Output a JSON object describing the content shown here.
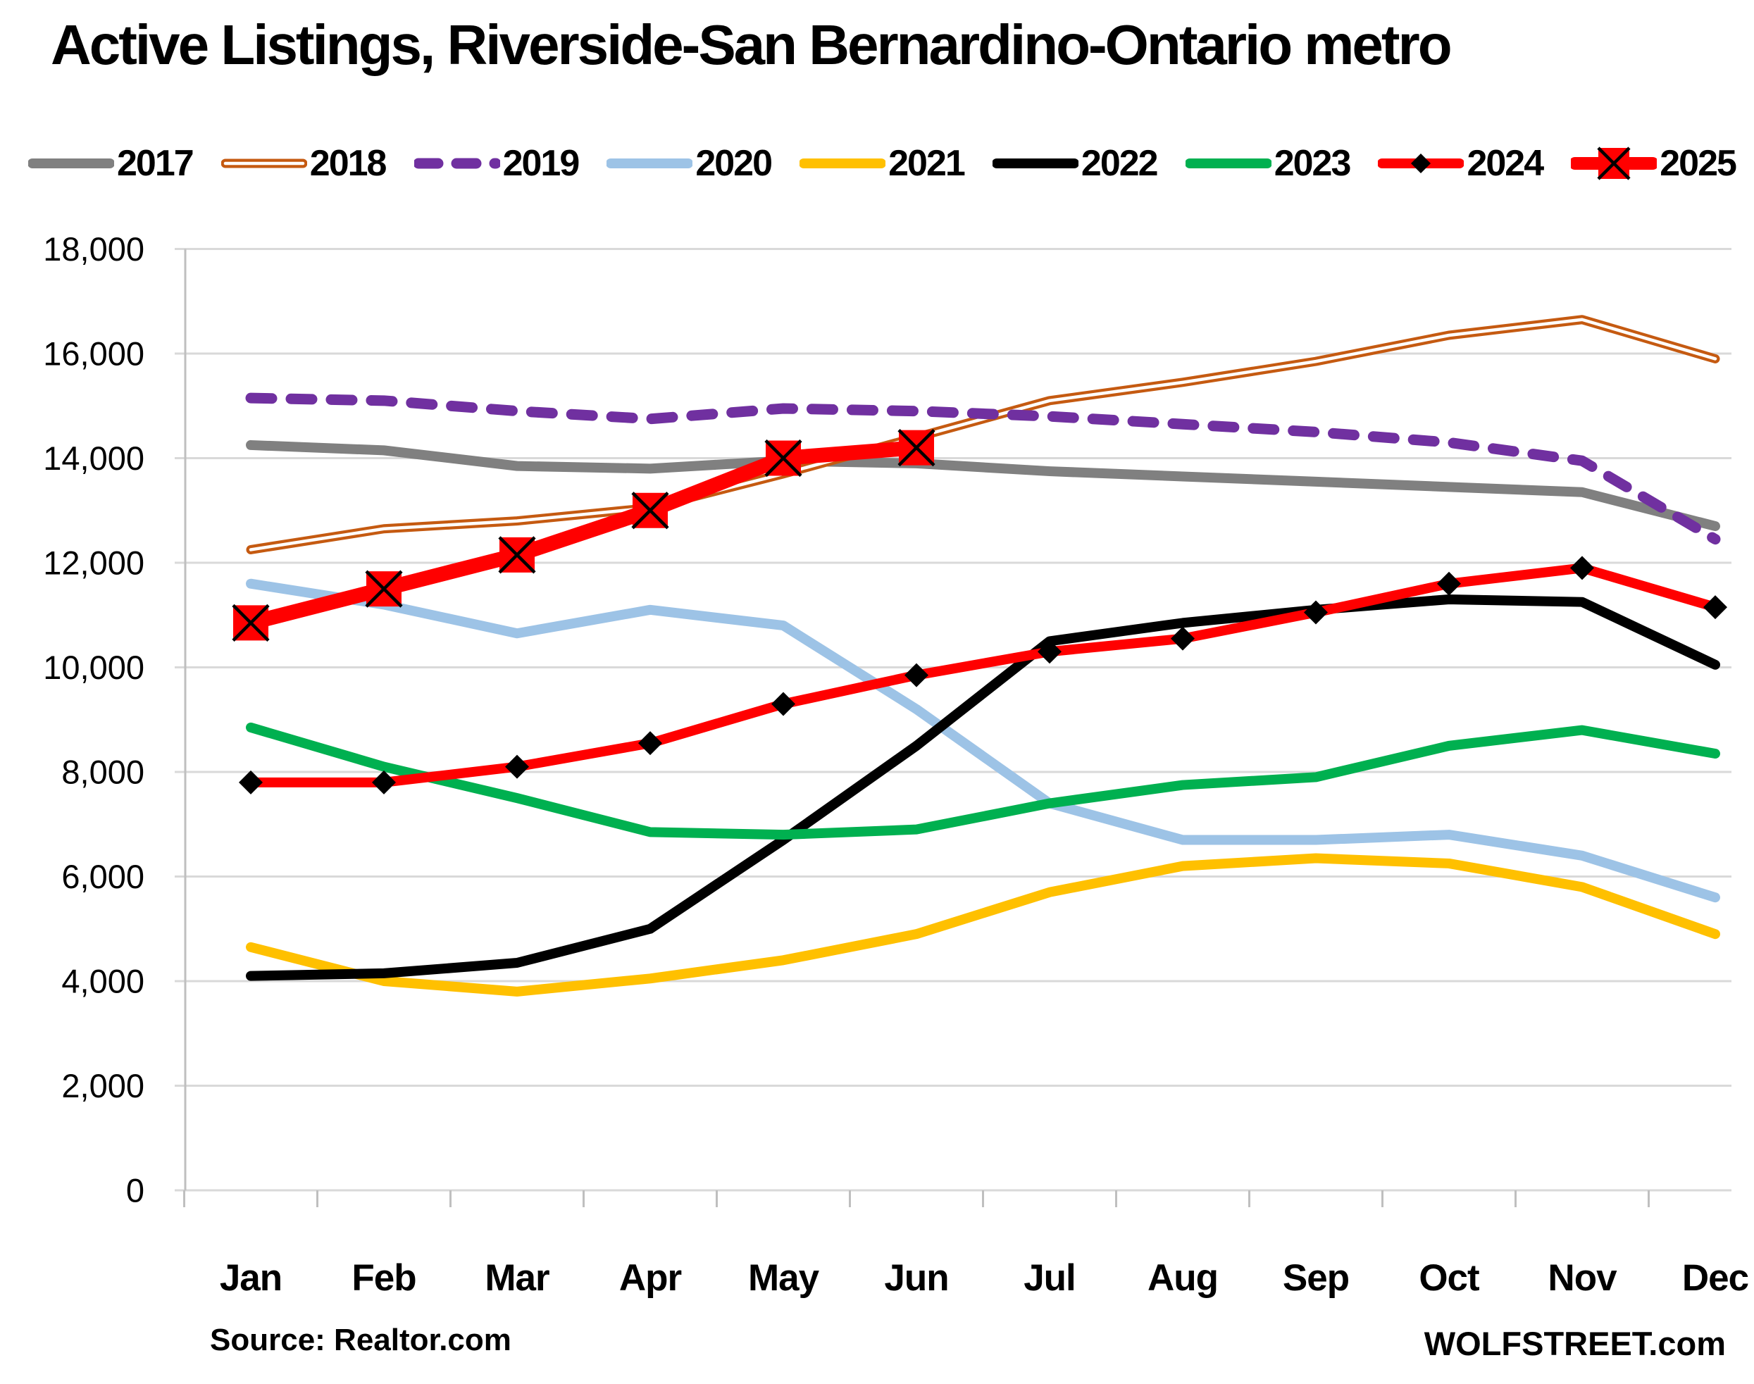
{
  "page": {
    "title": "Active Listings, Riverside-San Bernardino-Ontario metro"
  },
  "footer": {
    "source": "Source: Realtor.com",
    "brand": "WOLFSTREET.com"
  },
  "colors": {
    "background": "#FFFFFF",
    "gridline": "#D9D9D9",
    "axis": "#BFBFBF",
    "text": "#000000"
  },
  "chart_data": {
    "type": "line",
    "title": "Active Listings, Riverside-San Bernardino-Ontario metro",
    "xlabel": "",
    "ylabel": "",
    "ylim": [
      0,
      18000
    ],
    "ytick_step": 2000,
    "yticks": [
      "0",
      "2,000",
      "4,000",
      "6,000",
      "8,000",
      "10,000",
      "12,000",
      "14,000",
      "16,000",
      "18,000"
    ],
    "grid": "horizontal",
    "legend_position": "top",
    "categories": [
      "Jan",
      "Feb",
      "Mar",
      "Apr",
      "May",
      "Jun",
      "Jul",
      "Aug",
      "Sep",
      "Oct",
      "Nov",
      "Dec"
    ],
    "series": [
      {
        "name": "2017",
        "color": "#808080",
        "line_style": "solid",
        "line_width": 14,
        "marker": "none",
        "values": [
          14250,
          14150,
          13850,
          13800,
          13950,
          13900,
          13750,
          13650,
          13550,
          13450,
          13350,
          12700
        ]
      },
      {
        "name": "2018",
        "color": "#C55A11",
        "line_style": "double",
        "line_width": 13,
        "marker": "none",
        "values": [
          12250,
          12650,
          12800,
          13050,
          13700,
          14400,
          15100,
          15450,
          15850,
          16350,
          16650,
          15900
        ]
      },
      {
        "name": "2019",
        "color": "#7030A0",
        "line_style": "dashed",
        "line_width": 15,
        "marker": "none",
        "values": [
          15150,
          15100,
          14900,
          14750,
          14950,
          14900,
          14800,
          14650,
          14500,
          14300,
          13950,
          12450
        ]
      },
      {
        "name": "2020",
        "color": "#9DC3E6",
        "line_style": "solid",
        "line_width": 14,
        "marker": "none",
        "values": [
          11600,
          11200,
          10650,
          11100,
          10800,
          9200,
          7400,
          6700,
          6700,
          6800,
          6400,
          5600
        ]
      },
      {
        "name": "2021",
        "color": "#FFC000",
        "line_style": "solid",
        "line_width": 14,
        "marker": "none",
        "values": [
          4650,
          4000,
          3800,
          4050,
          4400,
          4900,
          5700,
          6200,
          6350,
          6250,
          5800,
          4900
        ]
      },
      {
        "name": "2022",
        "color": "#000000",
        "line_style": "solid",
        "line_width": 14,
        "marker": "none",
        "values": [
          4100,
          4150,
          4350,
          5000,
          6700,
          8500,
          10500,
          10850,
          11100,
          11300,
          11250,
          10050
        ]
      },
      {
        "name": "2023",
        "color": "#00B050",
        "line_style": "solid",
        "line_width": 14,
        "marker": "none",
        "values": [
          8850,
          8100,
          7500,
          6850,
          6800,
          6900,
          7400,
          7750,
          7900,
          8500,
          8800,
          8350
        ]
      },
      {
        "name": "2024",
        "color": "#FF0000",
        "line_style": "solid",
        "line_width": 14,
        "marker": "diamond",
        "marker_color": "#000000",
        "values": [
          7800,
          7800,
          8100,
          8550,
          9300,
          9850,
          10300,
          10550,
          11050,
          11600,
          11900,
          11150
        ]
      },
      {
        "name": "2025",
        "color": "#FF0000",
        "line_style": "solid",
        "line_width": 21,
        "marker": "x-square",
        "marker_color": "#FF0000",
        "values": [
          10850,
          11500,
          12150,
          13000,
          14000,
          14200
        ]
      }
    ]
  }
}
